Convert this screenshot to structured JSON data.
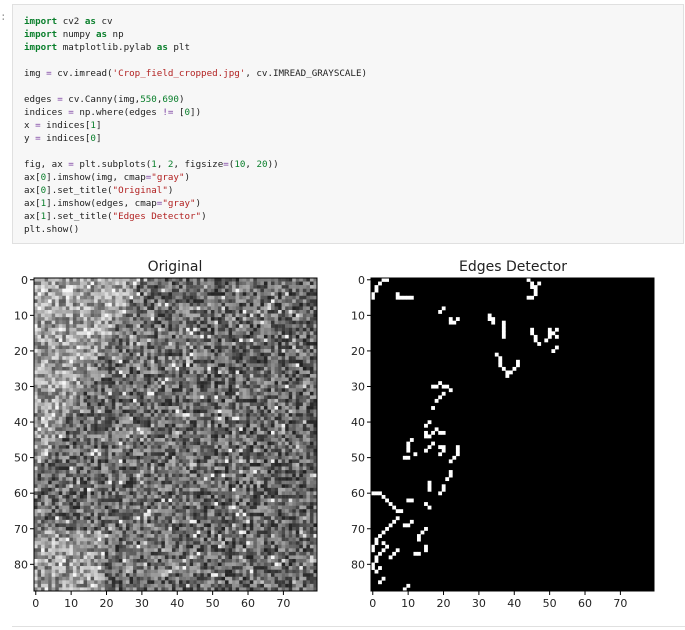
{
  "cell": {
    "prompt": ":",
    "code_lines": [
      [
        [
          "kw",
          "import"
        ],
        [
          "t",
          " cv2 "
        ],
        [
          "kw",
          "as"
        ],
        [
          "t",
          " cv"
        ]
      ],
      [
        [
          "kw",
          "import"
        ],
        [
          "t",
          " numpy "
        ],
        [
          "kw",
          "as"
        ],
        [
          "t",
          " np"
        ]
      ],
      [
        [
          "kw",
          "import"
        ],
        [
          "t",
          " matplotlib.pylab "
        ],
        [
          "kw",
          "as"
        ],
        [
          "t",
          " plt"
        ]
      ],
      [
        [
          "t",
          ""
        ]
      ],
      [
        [
          "t",
          "img "
        ],
        [
          "op",
          "="
        ],
        [
          "t",
          " cv.imread("
        ],
        [
          "str",
          "'Crop_field_cropped.jpg'"
        ],
        [
          "t",
          ", cv.IMREAD_GRAYSCALE)"
        ]
      ],
      [
        [
          "t",
          ""
        ]
      ],
      [
        [
          "t",
          "edges "
        ],
        [
          "op",
          "="
        ],
        [
          "t",
          " cv.Canny(img,"
        ],
        [
          "num",
          "550"
        ],
        [
          "t",
          ","
        ],
        [
          "num",
          "690"
        ],
        [
          "t",
          ")"
        ]
      ],
      [
        [
          "t",
          "indices "
        ],
        [
          "op",
          "="
        ],
        [
          "t",
          " np.where(edges "
        ],
        [
          "op",
          "!="
        ],
        [
          "t",
          " ["
        ],
        [
          "num",
          "0"
        ],
        [
          "t",
          "])"
        ]
      ],
      [
        [
          "t",
          "x "
        ],
        [
          "op",
          "="
        ],
        [
          "t",
          " indices["
        ],
        [
          "num",
          "1"
        ],
        [
          "t",
          "]"
        ]
      ],
      [
        [
          "t",
          "y "
        ],
        [
          "op",
          "="
        ],
        [
          "t",
          " indices["
        ],
        [
          "num",
          "0"
        ],
        [
          "t",
          "]"
        ]
      ],
      [
        [
          "t",
          ""
        ]
      ],
      [
        [
          "t",
          "fig, ax "
        ],
        [
          "op",
          "="
        ],
        [
          "t",
          " plt.subplots("
        ],
        [
          "num",
          "1"
        ],
        [
          "t",
          ", "
        ],
        [
          "num",
          "2"
        ],
        [
          "t",
          ", figsize"
        ],
        [
          "op",
          "="
        ],
        [
          "t",
          "("
        ],
        [
          "num",
          "10"
        ],
        [
          "t",
          ", "
        ],
        [
          "num",
          "20"
        ],
        [
          "t",
          "))"
        ]
      ],
      [
        [
          "t",
          "ax["
        ],
        [
          "num",
          "0"
        ],
        [
          "t",
          "].imshow(img, cmap"
        ],
        [
          "op",
          "="
        ],
        [
          "str",
          "\"gray\""
        ],
        [
          "t",
          ")"
        ]
      ],
      [
        [
          "t",
          "ax["
        ],
        [
          "num",
          "0"
        ],
        [
          "t",
          "].set_title("
        ],
        [
          "str",
          "\"Original\""
        ],
        [
          "t",
          ")"
        ]
      ],
      [
        [
          "t",
          "ax["
        ],
        [
          "num",
          "1"
        ],
        [
          "t",
          "].imshow(edges, cmap"
        ],
        [
          "op",
          "="
        ],
        [
          "str",
          "\"gray\""
        ],
        [
          "t",
          ")"
        ]
      ],
      [
        [
          "t",
          "ax["
        ],
        [
          "num",
          "1"
        ],
        [
          "t",
          "].set_title("
        ],
        [
          "str",
          "\"Edges Detector\""
        ],
        [
          "t",
          ")"
        ]
      ],
      [
        [
          "t",
          "plt.show()"
        ]
      ]
    ]
  },
  "figure": {
    "left_title": "Original",
    "right_title": "Edges Detector",
    "x_ticks": [
      "0",
      "10",
      "20",
      "30",
      "40",
      "50",
      "60",
      "70"
    ],
    "y_ticks": [
      "0",
      "10",
      "20",
      "30",
      "40",
      "50",
      "60",
      "70",
      "80"
    ]
  },
  "colors": {
    "keyword": "#0a7f2c",
    "string": "#b22222",
    "operator": "#7a3ea0",
    "edge_bg": "#000000",
    "edge_fg": "#ffffff"
  }
}
